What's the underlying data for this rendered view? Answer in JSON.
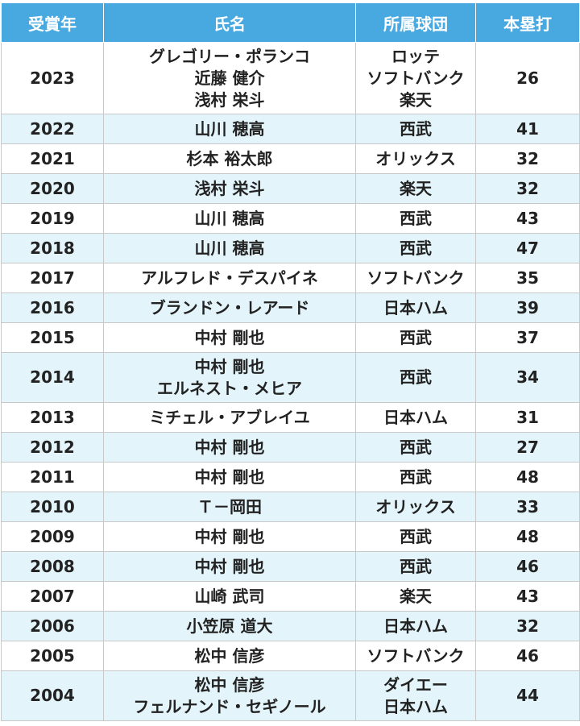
{
  "headers": {
    "year": "受賞年",
    "name": "氏名",
    "team": "所属球団",
    "hr": "本塁打"
  },
  "rows": [
    {
      "year": "2023",
      "names": [
        "グレゴリー・ポランコ",
        "近藤 健介",
        "浅村 栄斗"
      ],
      "teams": [
        "ロッテ",
        "ソフトバンク",
        "楽天"
      ],
      "hr": "26"
    },
    {
      "year": "2022",
      "names": [
        "山川 穂高"
      ],
      "teams": [
        "西武"
      ],
      "hr": "41"
    },
    {
      "year": "2021",
      "names": [
        "杉本 裕太郎"
      ],
      "teams": [
        "オリックス"
      ],
      "hr": "32"
    },
    {
      "year": "2020",
      "names": [
        "浅村 栄斗"
      ],
      "teams": [
        "楽天"
      ],
      "hr": "32"
    },
    {
      "year": "2019",
      "names": [
        "山川 穂高"
      ],
      "teams": [
        "西武"
      ],
      "hr": "43"
    },
    {
      "year": "2018",
      "names": [
        "山川 穂高"
      ],
      "teams": [
        "西武"
      ],
      "hr": "47"
    },
    {
      "year": "2017",
      "names": [
        "アルフレド・デスパイネ"
      ],
      "teams": [
        "ソフトバンク"
      ],
      "hr": "35"
    },
    {
      "year": "2016",
      "names": [
        "ブランドン・レアード"
      ],
      "teams": [
        "日本ハム"
      ],
      "hr": "39"
    },
    {
      "year": "2015",
      "names": [
        "中村 剛也"
      ],
      "teams": [
        "西武"
      ],
      "hr": "37"
    },
    {
      "year": "2014",
      "names": [
        "中村 剛也",
        "エルネスト・メヒア"
      ],
      "teams": [
        "西武"
      ],
      "hr": "34"
    },
    {
      "year": "2013",
      "names": [
        "ミチェル・アブレイユ"
      ],
      "teams": [
        "日本ハム"
      ],
      "hr": "31"
    },
    {
      "year": "2012",
      "names": [
        "中村 剛也"
      ],
      "teams": [
        "西武"
      ],
      "hr": "27"
    },
    {
      "year": "2011",
      "names": [
        "中村 剛也"
      ],
      "teams": [
        "西武"
      ],
      "hr": "48"
    },
    {
      "year": "2010",
      "names": [
        "Ｔ－岡田"
      ],
      "teams": [
        "オリックス"
      ],
      "hr": "33"
    },
    {
      "year": "2009",
      "names": [
        "中村 剛也"
      ],
      "teams": [
        "西武"
      ],
      "hr": "48"
    },
    {
      "year": "2008",
      "names": [
        "中村 剛也"
      ],
      "teams": [
        "西武"
      ],
      "hr": "46"
    },
    {
      "year": "2007",
      "names": [
        "山崎 武司"
      ],
      "teams": [
        "楽天"
      ],
      "hr": "43"
    },
    {
      "year": "2006",
      "names": [
        "小笠原 道大"
      ],
      "teams": [
        "日本ハム"
      ],
      "hr": "32"
    },
    {
      "year": "2005",
      "names": [
        "松中 信彦"
      ],
      "teams": [
        "ソフトバンク"
      ],
      "hr": "46"
    },
    {
      "year": "2004",
      "names": [
        "松中 信彦",
        "フェルナンド・セギノール"
      ],
      "teams": [
        "ダイエー",
        "日本ハム"
      ],
      "hr": "44"
    }
  ]
}
